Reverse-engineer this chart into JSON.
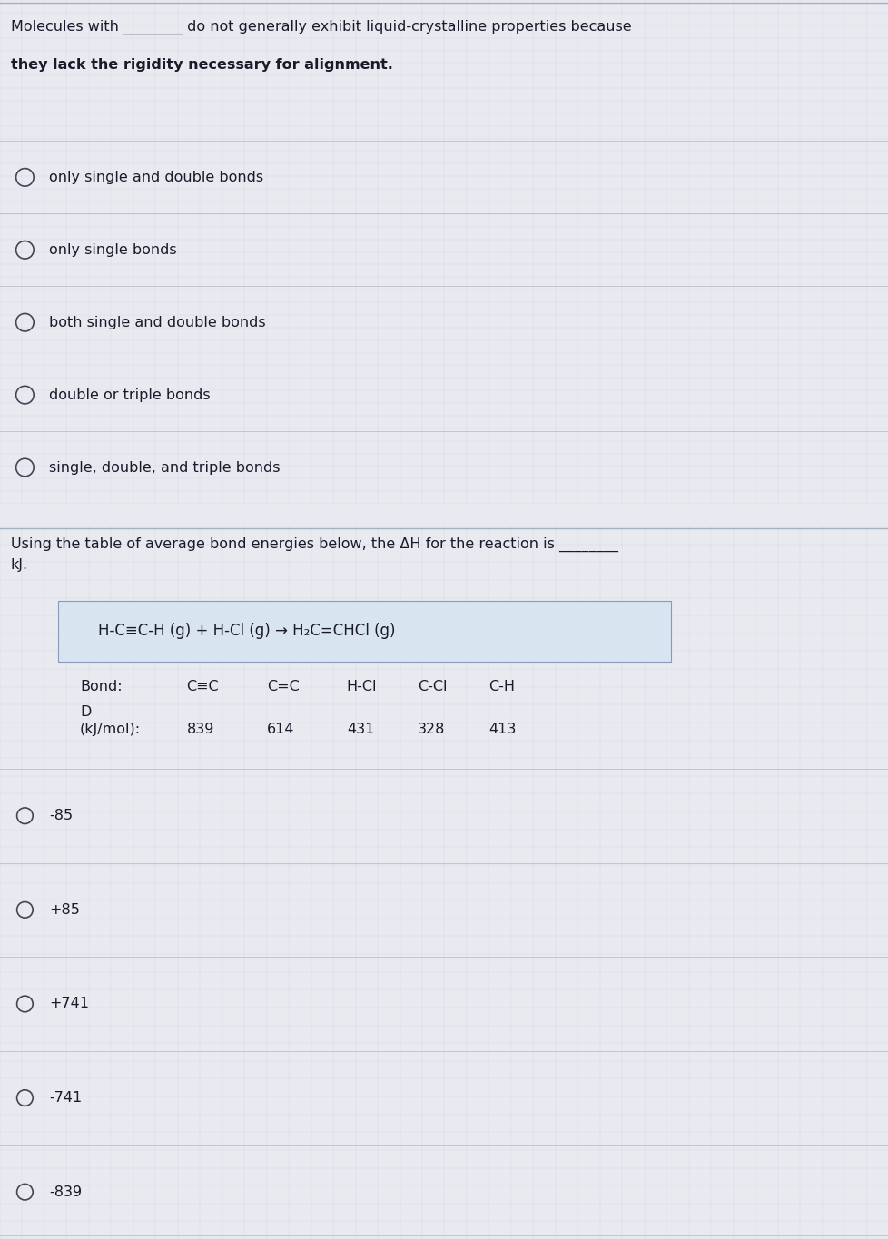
{
  "bg_color_top": "#b8c8e0",
  "bg_color_bottom": "#9fb8d8",
  "gap_color": "#e8eaf0",
  "separator_color": "#8899aa",
  "text_color": "#1a1a2a",
  "circle_color": "#444455",
  "grid_color": "#a8bcd0",
  "q1_prompt_line1": "Molecules with ________ do not generally exhibit liquid-crystalline properties because",
  "q1_prompt_line2": "they lack the rigidity necessary for alignment.",
  "q1_options": [
    "only single and double bonds",
    "only single bonds",
    "both single and double bonds",
    "double or triple bonds",
    "single, double, and triple bonds"
  ],
  "q2_prompt_line1": "Using the table of average bond energies below, the ΔH for the reaction is ________",
  "q2_prompt_line2": "kJ.",
  "q2_equation": "H-C≡C-H (g) + H-Cl (g) → H₂C=CHCl (g)",
  "q2_bond_label": "Bond:",
  "q2_bond_types": [
    "C≡C",
    "C=C",
    "H-Cl",
    "C-Cl",
    "C-H"
  ],
  "q2_d_label": "D",
  "q2_d_unit": "(kJ/mol):",
  "q2_d_values": [
    "839",
    "614",
    "431",
    "328",
    "413"
  ],
  "q2_options": [
    "-85",
    "+85",
    "+741",
    "-741",
    "-839"
  ]
}
